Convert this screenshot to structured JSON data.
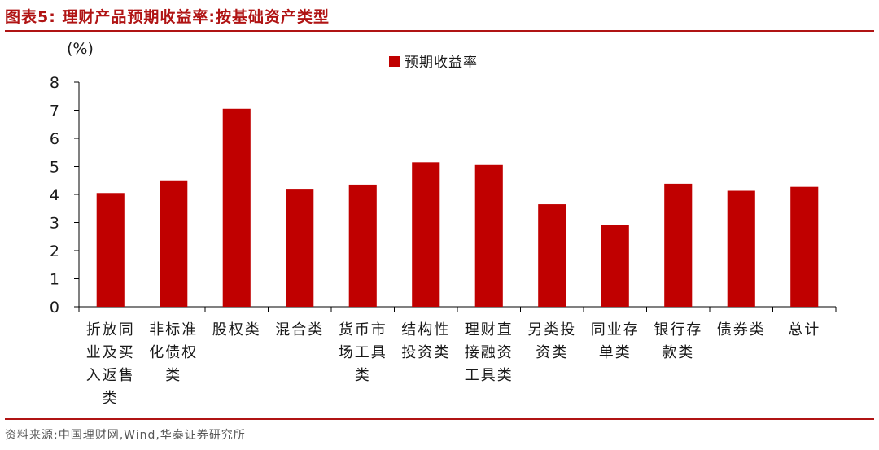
{
  "figure_title": "图表5:  理财产品预期收益率:按基础资产类型",
  "source": "资料来源:中国理财网,Wind,华泰证券研究所",
  "colors": {
    "bar": "#c00000",
    "title": "#b01414",
    "rule": "#b01414"
  },
  "chart_data": {
    "type": "bar",
    "title": "",
    "ylabel": "(%)",
    "xlabel": "",
    "ylim": [
      0,
      8
    ],
    "yticks": [
      "0",
      "1",
      "2",
      "3",
      "4",
      "5",
      "6",
      "7",
      "8"
    ],
    "grid": false,
    "legend_position": "top-center",
    "categories": [
      [
        "折放同",
        "业及买",
        "入返售",
        "类"
      ],
      [
        "非标准",
        "化债权",
        "类"
      ],
      [
        "股权类"
      ],
      [
        "混合类"
      ],
      [
        "货币市",
        "场工具",
        "类"
      ],
      [
        "结构性",
        "投资类"
      ],
      [
        "理财直",
        "接融资",
        "工具类"
      ],
      [
        "另类投",
        "资类"
      ],
      [
        "同业存",
        "单类"
      ],
      [
        "银行存",
        "款类"
      ],
      [
        "债券类"
      ],
      [
        "总计"
      ]
    ],
    "series": [
      {
        "name": "预期收益率",
        "values": [
          4.05,
          4.5,
          7.05,
          4.2,
          4.35,
          5.15,
          5.05,
          3.65,
          2.9,
          4.38,
          4.13,
          4.27
        ]
      }
    ]
  }
}
